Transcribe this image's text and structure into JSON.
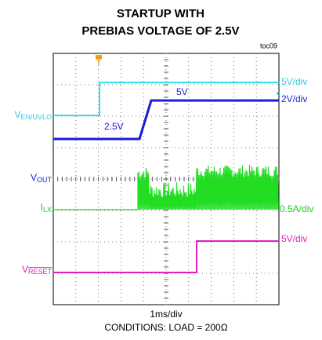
{
  "header": {
    "title_lines": [
      "STARTUP WITH",
      "PREBIAS VOLTAGE OF 2.5V"
    ],
    "figure_id": "toc09"
  },
  "traces": [
    {
      "name_main": "V",
      "name_sub": "EN/UVLO",
      "scale": "5V/div"
    },
    {
      "name_main": "",
      "name_sub": "",
      "scale": "2V/div",
      "annotations": [
        "2.5V",
        "5V"
      ]
    },
    {
      "name_main": "V",
      "name_sub": "OUT",
      "scale": ""
    },
    {
      "name_main": "I",
      "name_sub": "LX",
      "scale": "0.5A/div"
    },
    {
      "name_main": "V",
      "name_sub": "RESET",
      "scale": "5V/div"
    }
  ],
  "footer": {
    "timebase": "1ms/div",
    "conditions": "CONDITIONS: LOAD = 200Ω"
  }
}
